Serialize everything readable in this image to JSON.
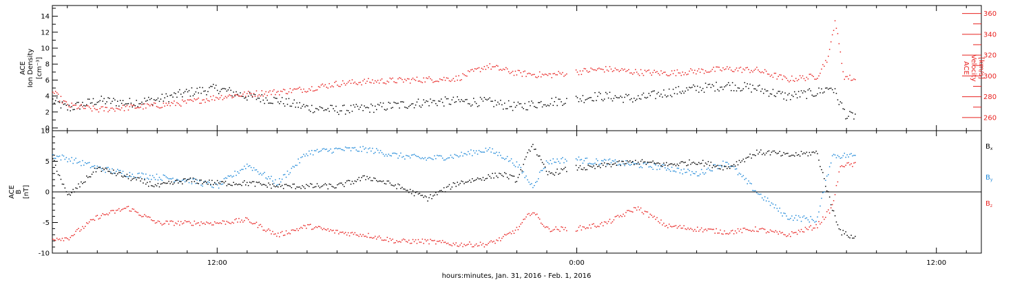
{
  "colors": {
    "black": "#000000",
    "red": "#e8201e",
    "blue": "#1e88d8"
  },
  "x_axis": {
    "label": "hours:minutes, Jan. 31, 2016 - Feb.  1, 2016",
    "range_hours": [
      6.5,
      37.5
    ],
    "ticks": [
      {
        "h": 12,
        "label": "12:00"
      },
      {
        "h": 24,
        "label": "0:00"
      },
      {
        "h": 36,
        "label": "12:00"
      }
    ]
  },
  "chart_data": [
    {
      "type": "scatter",
      "panel": "top",
      "left_axis": {
        "label_lines": [
          "ACE",
          "Ion Density",
          "[cm⁻³]"
        ],
        "ylim": [
          0,
          15
        ],
        "ticks": [
          "0",
          "2",
          "4",
          "6",
          "8",
          "10",
          "12",
          "14"
        ]
      },
      "right_axis": {
        "label_lines": [
          "ACE",
          "Velocity",
          "[km/s]"
        ],
        "ylim": [
          250,
          365
        ],
        "ticks": [
          "260",
          "280",
          "300",
          "320",
          "340",
          "360"
        ]
      },
      "series": [
        {
          "quantity": "ion_density",
          "axis": "left",
          "color": "black",
          "data_end_hours": 33.3,
          "points_hours": [
            6.5,
            7,
            8,
            9,
            10,
            11,
            12,
            13,
            14,
            15,
            16,
            17,
            18,
            19,
            20,
            21,
            22,
            23,
            23.9,
            24.5,
            25,
            26,
            27,
            28,
            29,
            30,
            31,
            32,
            32.5,
            33,
            33.3
          ],
          "values": [
            3.5,
            2.5,
            3.5,
            3.2,
            3.6,
            4.5,
            5.0,
            4.0,
            3.5,
            2.6,
            2.3,
            2.5,
            2.9,
            3.3,
            3.4,
            3.3,
            2.7,
            3.3,
            3.6,
            4.0,
            4.0,
            3.7,
            4.5,
            5.0,
            5.4,
            5.0,
            4.0,
            4.5,
            5.2,
            1.5,
            1.6
          ]
        },
        {
          "quantity": "velocity",
          "axis": "right",
          "color": "red",
          "data_end_hours": 33.3,
          "points_hours": [
            6.5,
            7,
            8,
            9,
            10,
            11,
            12,
            13,
            14,
            15,
            16,
            17,
            18,
            19,
            20,
            21,
            22,
            23,
            23.9,
            24.5,
            25,
            26,
            27,
            28,
            29,
            30,
            31,
            32,
            32.4,
            32.6,
            32.9,
            33.3
          ],
          "values": [
            285,
            272,
            268,
            270,
            272,
            275,
            280,
            283,
            285,
            288,
            293,
            295,
            296,
            297,
            298,
            310,
            303,
            301,
            304,
            306,
            307,
            304,
            303,
            305,
            307,
            306,
            297,
            300,
            320,
            355,
            300,
            297
          ]
        }
      ]
    },
    {
      "type": "scatter",
      "panel": "bottom",
      "left_axis": {
        "label_lines": [
          "ACE",
          "B",
          "[nT]"
        ],
        "ylim": [
          -10,
          10
        ],
        "ticks": [
          "-10",
          "-5",
          "0",
          "5",
          "10"
        ]
      },
      "legend": [
        {
          "label": "Bx",
          "color": "black"
        },
        {
          "label": "By",
          "color": "blue"
        },
        {
          "label": "Bz",
          "color": "red"
        }
      ],
      "series": [
        {
          "name": "Bx",
          "color": "black",
          "data_end_hours": 33.3,
          "points_hours": [
            6.5,
            7,
            8,
            9,
            10,
            11,
            12,
            13,
            14,
            15,
            16,
            17,
            18,
            19,
            20,
            21,
            21.5,
            22,
            22.5,
            23,
            23.9,
            24.5,
            25,
            26,
            27,
            28,
            29,
            30,
            30.5,
            31,
            32,
            32.5,
            32.8,
            33.3
          ],
          "values": [
            5.5,
            -0.7,
            4.0,
            2.5,
            1.0,
            2.0,
            1.5,
            1.5,
            1.0,
            1.0,
            1.0,
            2.5,
            1.0,
            -1.0,
            1.5,
            2.5,
            3.0,
            2.0,
            8.0,
            3.0,
            4.0,
            4.0,
            4.5,
            5.0,
            4.5,
            5.0,
            4.0,
            6.5,
            6.5,
            6.0,
            6.5,
            -2.5,
            -6.5,
            -7.5
          ]
        },
        {
          "name": "By",
          "color": "blue",
          "data_end_hours": 33.3,
          "points_hours": [
            6.5,
            7,
            8,
            9,
            10,
            11,
            12,
            13,
            14,
            15,
            16,
            17,
            18,
            19,
            20,
            21,
            21.5,
            22,
            22.5,
            23,
            23.9,
            24.5,
            25,
            26,
            27,
            28,
            29,
            30,
            30.5,
            31,
            32,
            32.5,
            32.8,
            33.3
          ],
          "values": [
            6.0,
            5.5,
            4.0,
            3.0,
            2.5,
            2.0,
            1.0,
            4.5,
            1.5,
            6.5,
            7.0,
            7.0,
            6.0,
            5.5,
            6.0,
            7.0,
            6.0,
            4.5,
            1.0,
            5.0,
            5.5,
            5.0,
            5.0,
            4.5,
            4.0,
            3.0,
            5.0,
            0.0,
            -2.0,
            -4.0,
            -4.5,
            6.0,
            6.0,
            6.0
          ]
        },
        {
          "name": "Bz",
          "color": "red",
          "data_end_hours": 33.3,
          "points_hours": [
            6.5,
            7,
            8,
            9,
            10,
            11,
            12,
            13,
            14,
            15,
            16,
            17,
            18,
            19,
            20,
            21,
            21.5,
            22,
            22.5,
            23,
            23.9,
            24.5,
            25,
            26,
            27,
            28,
            29,
            30,
            30.5,
            31,
            32,
            32.5,
            32.8,
            33.3
          ],
          "values": [
            -7.5,
            -7.5,
            -4.0,
            -2.5,
            -5.0,
            -5.0,
            -5.0,
            -4.5,
            -7.0,
            -5.5,
            -6.5,
            -7.0,
            -8.0,
            -8.0,
            -8.5,
            -8.5,
            -7.5,
            -6.0,
            -3.0,
            -6.0,
            -6.0,
            -5.5,
            -5.0,
            -2.5,
            -5.5,
            -6.0,
            -6.5,
            -6.0,
            -6.5,
            -7.0,
            -5.5,
            -2.5,
            4.5,
            4.5
          ]
        }
      ]
    }
  ]
}
